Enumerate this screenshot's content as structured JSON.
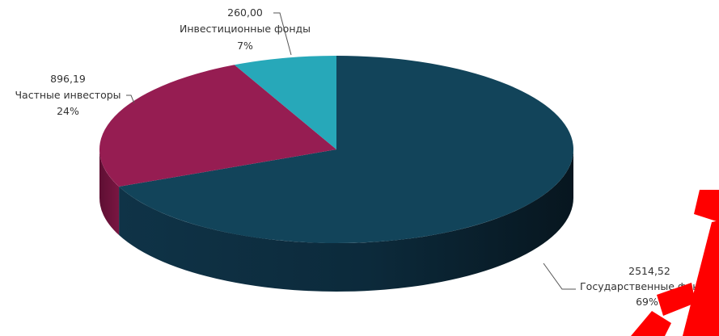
{
  "chart_data": {
    "type": "pie",
    "slices": [
      {
        "label": "Государственные фонды",
        "value": 2514.52,
        "value_text": "2514,52",
        "percent_text": "69%",
        "color": "#12445a"
      },
      {
        "label": "Частные инвесторы",
        "value": 896.19,
        "value_text": "896,19",
        "percent_text": "24%",
        "color": "#961d52"
      },
      {
        "label": "Инвестиционные фонды",
        "value": 260.0,
        "value_text": "260,00",
        "percent_text": "7%",
        "color": "#27a8b9"
      }
    ],
    "style": "3d",
    "legend": "none",
    "grid": false
  },
  "colors": {
    "watermark": "#ff0000",
    "side_dark": "#0b2233"
  }
}
